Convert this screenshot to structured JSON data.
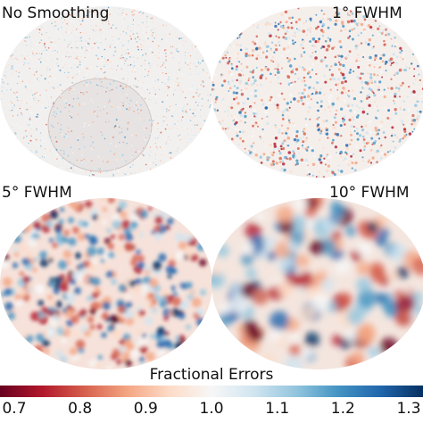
{
  "panels": [
    {
      "label": "No Smoothing"
    },
    {
      "label": "1$^\\circ$ FWHM",
      "display": "1° FWHM"
    },
    {
      "label": "5° FWHM"
    },
    {
      "label": "10° FWHM"
    }
  ],
  "colorbar": {
    "title": "Fractional Errors",
    "colormap": "RdBu",
    "range": [
      0.7,
      1.3
    ],
    "ticks": [
      "0.7",
      "0.8",
      "0.9",
      "1.0",
      "1.1",
      "1.2",
      "1.3"
    ],
    "colors": [
      "#67001f",
      "#b2182b",
      "#d6604d",
      "#f4a582",
      "#fddbc7",
      "#f7f7f7",
      "#d1e5f0",
      "#92c5de",
      "#4393c3",
      "#2166ac",
      "#053061"
    ]
  }
}
